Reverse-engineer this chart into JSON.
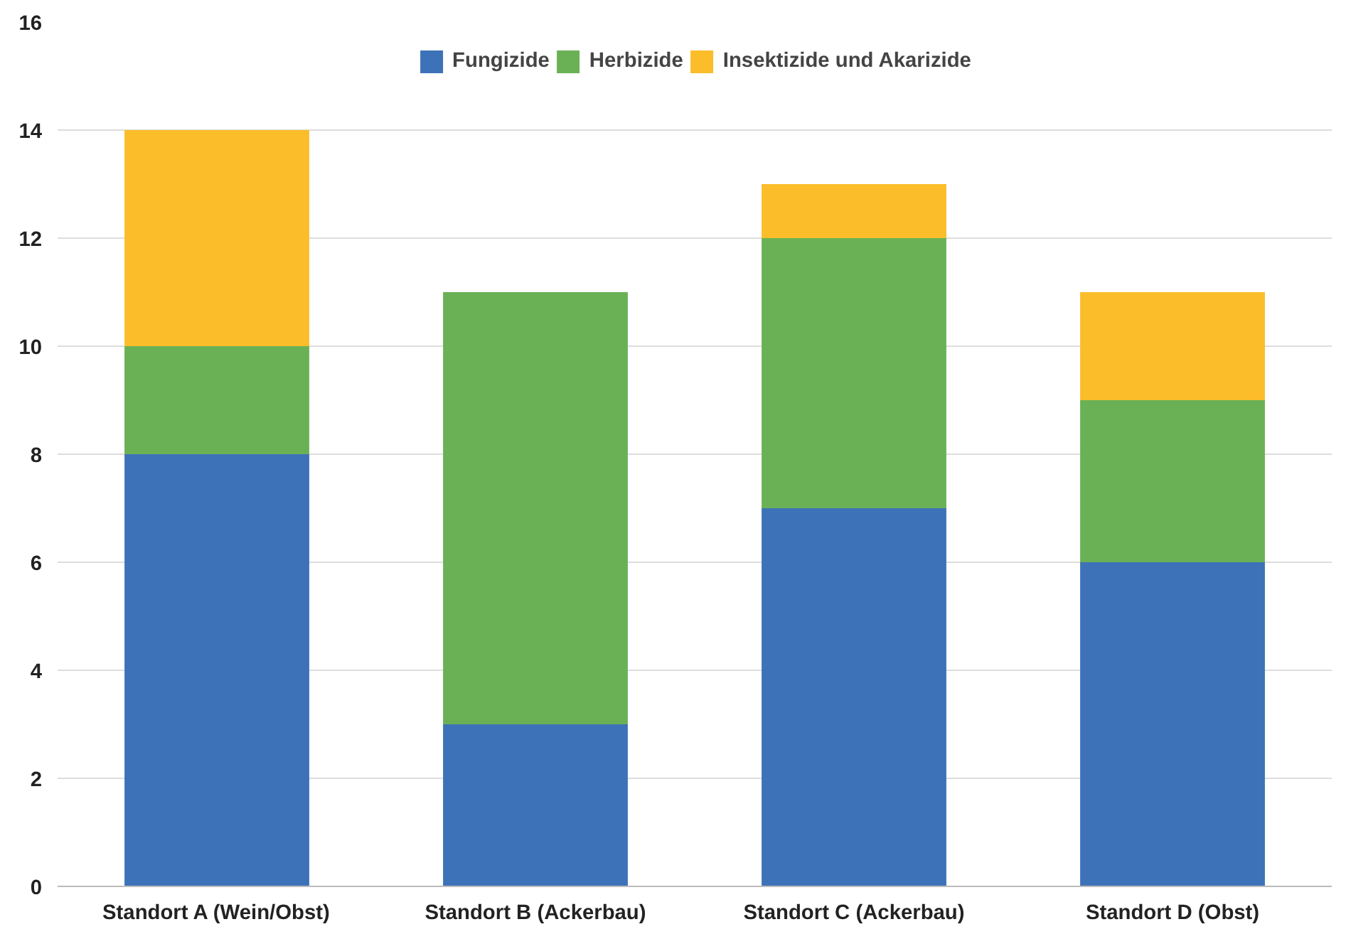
{
  "chart_data": {
    "type": "bar",
    "stacked": true,
    "categories": [
      "Standort A (Wein/Obst)",
      "Standort B (Ackerbau)",
      "Standort C (Ackerbau)",
      "Standort D (Obst)"
    ],
    "series": [
      {
        "name": "Fungizide",
        "color": "#3d72b8",
        "values": [
          8,
          3,
          7,
          6
        ]
      },
      {
        "name": "Herbizide",
        "color": "#6ab155",
        "values": [
          2,
          8,
          5,
          3
        ]
      },
      {
        "name": "Insektizide und Akarizide",
        "color": "#fbbd2a",
        "values": [
          4,
          0,
          1,
          2
        ]
      }
    ],
    "ylim": [
      0,
      16
    ],
    "yticks": [
      0,
      2,
      4,
      6,
      8,
      10,
      12,
      14,
      16
    ],
    "grid": "y",
    "legend": "top"
  }
}
